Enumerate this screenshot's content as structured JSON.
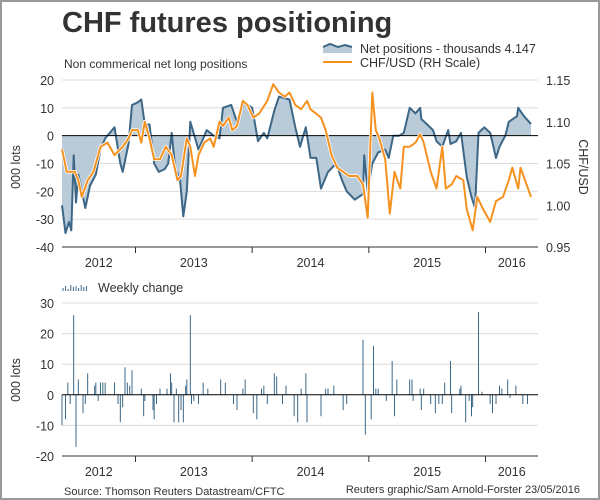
{
  "chart_data": [
    {
      "type": "area+line",
      "title": "CHF futures positioning",
      "subtitle": "Non commerical net long positions",
      "ylabel": "000 lots",
      "ylabel_right": "CHF/USD",
      "ylim": [
        -40,
        20
      ],
      "ylim_right": [
        0.95,
        1.15
      ],
      "yticks": [
        "20",
        "10",
        "0",
        "-10",
        "-20",
        "-30",
        "-40"
      ],
      "yticks_right": [
        "1.15",
        "1.10",
        "1.05",
        "1.00",
        "0.95"
      ],
      "xlim": [
        2012.37,
        2016.45
      ],
      "xticks": [
        "2012",
        "2013",
        "2014",
        "2015",
        "2016"
      ],
      "grid": true,
      "legend_placement": "top-right",
      "colors": {
        "net": "#3d6787",
        "net_fill": "#b9cbd8",
        "chf": "#f5911f",
        "zero": "#000000"
      },
      "series": [
        {
          "name": "Net positions - thousands 4.147",
          "axis": "left",
          "x": [
            2012.37,
            2012.4,
            2012.43,
            2012.45,
            2012.47,
            2012.49,
            2012.51,
            2012.54,
            2012.57,
            2012.61,
            2012.66,
            2012.7,
            2012.74,
            2012.82,
            2012.87,
            2012.89,
            2012.94,
            2012.97,
            2013.02,
            2013.05,
            2013.08,
            2013.12,
            2013.16,
            2013.2,
            2013.25,
            2013.28,
            2013.31,
            2013.34,
            2013.38,
            2013.41,
            2013.44,
            2013.47,
            2013.54,
            2013.61,
            2013.67,
            2013.72,
            2013.75,
            2013.82,
            2013.87,
            2013.93,
            2014.0,
            2014.05,
            2014.1,
            2014.13,
            2014.19,
            2014.23,
            2014.32,
            2014.37,
            2014.41,
            2014.46,
            2014.5,
            2014.55,
            2014.59,
            2014.62,
            2014.65,
            2014.72,
            2014.77,
            2014.81,
            2014.88,
            2014.95,
            2014.96,
            2014.99,
            2015.03,
            2015.08,
            2015.14,
            2015.17,
            2015.21,
            2015.26,
            2015.3,
            2015.35,
            2015.4,
            2015.44,
            2015.45,
            2015.5,
            2015.55,
            2015.58,
            2015.63,
            2015.68,
            2015.7,
            2015.75,
            2015.79,
            2015.84,
            2015.88,
            2015.91,
            2015.94,
            2015.99,
            2016.04,
            2016.09,
            2016.12,
            2016.17,
            2016.2,
            2016.27,
            2016.28,
            2016.33,
            2016.39
          ],
          "values": [
            -25,
            -35,
            -31,
            -34,
            -7,
            -24,
            -14,
            -20,
            -26,
            -18,
            -14,
            -5,
            -1,
            3,
            -10,
            -13,
            -3,
            11,
            12,
            13,
            4,
            4,
            -10,
            -13,
            -12,
            -10,
            1,
            -12,
            -15,
            -29,
            -20,
            5,
            -5,
            2,
            0,
            -1,
            10,
            11,
            5,
            12,
            10,
            -2,
            1,
            -1,
            9,
            14,
            13,
            3,
            -4,
            3,
            -8,
            -8,
            -19,
            -16,
            -13,
            -10,
            -16,
            -20,
            -23,
            -21,
            -7,
            -20,
            -10,
            -6,
            -5,
            -8,
            0,
            0,
            1,
            10,
            8,
            10,
            6,
            4,
            2,
            -2,
            -4,
            2,
            -3,
            -2,
            1,
            -15,
            -22,
            -26,
            1,
            3,
            1,
            -8,
            -4,
            0,
            5,
            7,
            10,
            7,
            4.147
          ]
        },
        {
          "name": "CHF/USD (RH Scale)",
          "axis": "right",
          "x": [
            2012.37,
            2012.41,
            2012.48,
            2012.51,
            2012.54,
            2012.59,
            2012.64,
            2012.7,
            2012.76,
            2012.82,
            2012.89,
            2012.94,
            2012.97,
            2013.02,
            2013.05,
            2013.08,
            2013.12,
            2013.16,
            2013.21,
            2013.26,
            2013.31,
            2013.36,
            2013.39,
            2013.44,
            2013.47,
            2013.51,
            2013.54,
            2013.59,
            2013.64,
            2013.67,
            2013.72,
            2013.75,
            2013.8,
            2013.83,
            2013.87,
            2013.92,
            2013.96,
            2014.01,
            2014.06,
            2014.13,
            2014.18,
            2014.23,
            2014.28,
            2014.32,
            2014.37,
            2014.42,
            2014.47,
            2014.5,
            2014.59,
            2014.63,
            2014.68,
            2014.73,
            2014.78,
            2014.83,
            2014.9,
            2014.95,
            2014.99,
            2015.03,
            2015.06,
            2015.09,
            2015.14,
            2015.18,
            2015.22,
            2015.27,
            2015.3,
            2015.35,
            2015.4,
            2015.44,
            2015.47,
            2015.53,
            2015.58,
            2015.63,
            2015.66,
            2015.71,
            2015.75,
            2015.81,
            2015.84,
            2015.89,
            2015.93,
            2015.98,
            2016.04,
            2016.09,
            2016.15,
            2016.2,
            2016.23,
            2016.28,
            2016.3,
            2016.39
          ],
          "values": [
            1.067,
            1.04,
            1.04,
            1.03,
            1.01,
            1.03,
            1.04,
            1.07,
            1.075,
            1.06,
            1.07,
            1.08,
            1.09,
            1.09,
            1.075,
            1.1,
            1.08,
            1.055,
            1.055,
            1.07,
            1.06,
            1.03,
            1.035,
            1.08,
            1.07,
            1.035,
            1.06,
            1.075,
            1.08,
            1.07,
            1.1,
            1.095,
            1.105,
            1.09,
            1.095,
            1.125,
            1.12,
            1.105,
            1.11,
            1.125,
            1.145,
            1.135,
            1.13,
            1.135,
            1.12,
            1.115,
            1.125,
            1.115,
            1.105,
            1.09,
            1.06,
            1.045,
            1.04,
            1.035,
            1.035,
            1.025,
            0.985,
            1.135,
            1.09,
            1.08,
            1.055,
            0.99,
            1.04,
            1.02,
            1.07,
            1.07,
            1.075,
            1.085,
            1.075,
            1.04,
            1.02,
            1.07,
            1.02,
            1.025,
            1.035,
            1.03,
            0.995,
            0.97,
            1.01,
            0.995,
            0.98,
            1.005,
            1.01,
            1.03,
            1.045,
            1.02,
            1.045,
            1.01
          ]
        }
      ]
    },
    {
      "type": "bar",
      "legend": "Weekly change",
      "ylabel": "000 lots",
      "ylim": [
        -20,
        30
      ],
      "yticks": [
        "30",
        "20",
        "10",
        "0",
        "-10",
        "-20"
      ],
      "xlim": [
        2012.37,
        2016.45
      ],
      "xticks": [
        "2012",
        "2013",
        "2014",
        "2015",
        "2016"
      ],
      "grid": true,
      "legend_placement": "top-left",
      "colors": {
        "bar": "#3d6787"
      },
      "x": [
        2012.37,
        2012.4,
        2012.42,
        2012.44,
        2012.47,
        2012.49,
        2012.51,
        2012.55,
        2012.57,
        2012.59,
        2012.65,
        2012.66,
        2012.68,
        2012.7,
        2012.72,
        2012.74,
        2012.82,
        2012.85,
        2012.87,
        2012.89,
        2012.91,
        2012.93,
        2012.95,
        2012.97,
        2013.05,
        2013.07,
        2013.08,
        2013.15,
        2013.16,
        2013.18,
        2013.21,
        2013.27,
        2013.3,
        2013.31,
        2013.33,
        2013.35,
        2013.37,
        2013.39,
        2013.41,
        2013.43,
        2013.44,
        2013.47,
        2013.48,
        2013.5,
        2013.54,
        2013.58,
        2013.62,
        2013.73,
        2013.77,
        2013.84,
        2013.87,
        2013.92,
        2013.94,
        2014.01,
        2014.04,
        2014.08,
        2014.1,
        2014.13,
        2014.19,
        2014.21,
        2014.26,
        2014.29,
        2014.36,
        2014.39,
        2014.42,
        2014.46,
        2014.47,
        2014.59,
        2014.63,
        2014.65,
        2014.7,
        2014.78,
        2014.81,
        2014.95,
        2014.97,
        2015.02,
        2015.04,
        2015.06,
        2015.08,
        2015.15,
        2015.2,
        2015.22,
        2015.24,
        2015.35,
        2015.37,
        2015.38,
        2015.44,
        2015.45,
        2015.47,
        2015.53,
        2015.57,
        2015.6,
        2015.63,
        2015.65,
        2015.7,
        2015.71,
        2015.78,
        2015.79,
        2015.83,
        2015.86,
        2015.88,
        2015.89,
        2015.94,
        2015.97,
        2016.04,
        2016.06,
        2016.09,
        2016.12,
        2016.14,
        2016.19,
        2016.21,
        2016.26,
        2016.32,
        2016.36
      ],
      "values": [
        -10,
        -8,
        4,
        -3,
        26,
        -17,
        5,
        -6,
        -3,
        7,
        3,
        4,
        -2,
        4,
        4,
        4,
        4,
        -3,
        -9,
        -4,
        9,
        4,
        3,
        8,
        2,
        -7,
        -2,
        -5,
        -8,
        -3,
        2,
        2,
        7,
        4,
        -9,
        2,
        -9,
        -5,
        -9,
        3,
        5,
        26,
        -3,
        -2,
        -3,
        4,
        2,
        5,
        4,
        -3,
        -5,
        2,
        5,
        -6,
        -8,
        2,
        3,
        -3,
        7,
        6,
        -3,
        3,
        -7,
        -9,
        2,
        7,
        -9,
        -7,
        2,
        2,
        3,
        -5,
        -3,
        18,
        -13,
        -8,
        16,
        2,
        2,
        -2,
        11,
        -7,
        5,
        5,
        5,
        -2,
        2,
        -5,
        2,
        -3,
        -6,
        -3,
        -3,
        4,
        11,
        -6,
        2,
        3,
        -9,
        -2,
        -7,
        -4,
        27,
        1,
        -3,
        -6,
        -3,
        3,
        2,
        5,
        -1,
        3,
        -3,
        -3
      ]
    }
  ],
  "footer": {
    "source": "Source: Thomson Reuters Datastream/CFTC",
    "credit": "Reuters graphic/Sam Arnold-Forster 23/05/2016"
  }
}
